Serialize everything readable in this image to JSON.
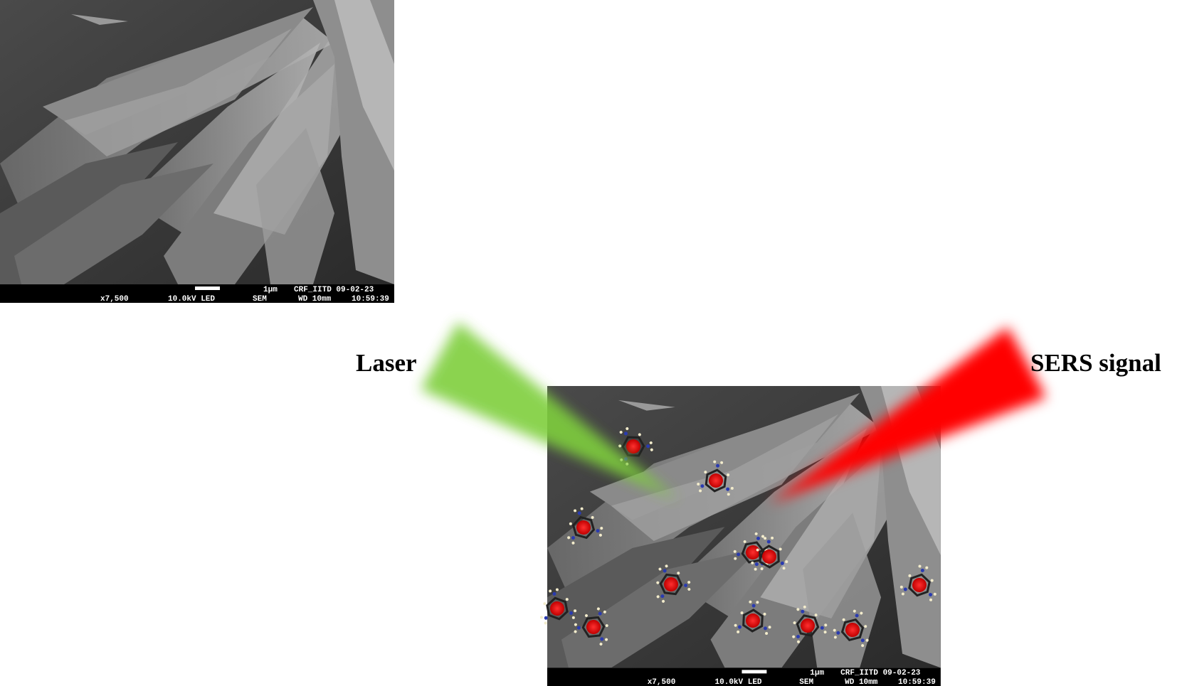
{
  "labels": {
    "laser": "Laser",
    "sers": "SERS signal"
  },
  "images": [
    {
      "info": {
        "scale": "1μm",
        "facility": "CRF_IITD 09-02-23",
        "magnification": "x7,500",
        "voltage": "10.0kV LED",
        "mode": "SEM",
        "distance": "WD 10mm",
        "time": "10:59:39"
      }
    },
    {
      "info": {
        "scale": "1μm",
        "facility": "CRF_IITD 09-02-23",
        "magnification": "x7,500",
        "voltage": "10.0kV LED",
        "mode": "SEM",
        "distance": "WD 10mm",
        "time": "10:59:39"
      }
    }
  ]
}
